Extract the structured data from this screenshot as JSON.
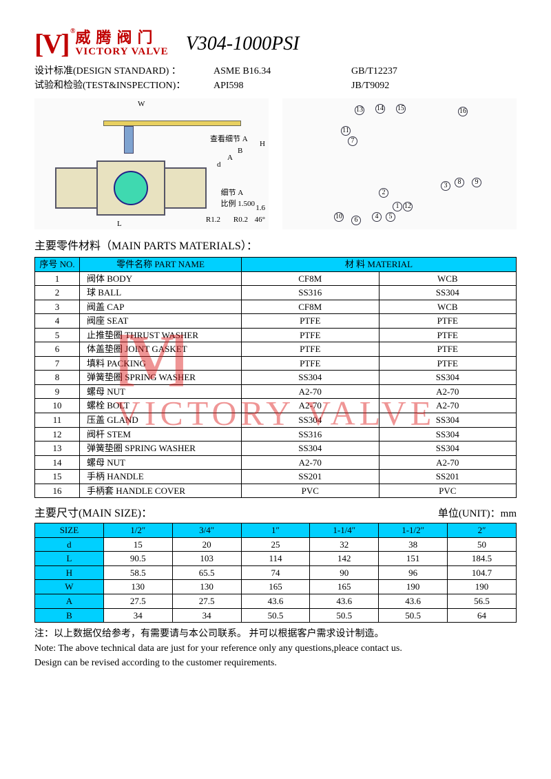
{
  "logo": {
    "v": "[V]",
    "cn": "威腾阀门",
    "en": "VICTORY VALVE",
    "reg": "®"
  },
  "model": "V304-1000PSI",
  "specs": {
    "design_label": "设计标准(DESIGN STANDARD) ：",
    "design_v1": "ASME B16.34",
    "design_v2": "GB/T12237",
    "test_label": "试验和检验(TEST&INSPECTION)：",
    "test_v1": "API598",
    "test_v2": "JB/T9092"
  },
  "diagram": {
    "dim_W": "W",
    "dim_H": "H",
    "dim_L": "L",
    "dim_A": "A",
    "dim_B": "B",
    "dim_d": "d",
    "detail_a": "查看细节 A",
    "detail_scale": "细节 A\n比例 1.500",
    "r12": "R1.2",
    "r02": "R0.2",
    "ang": "46°",
    "rough": "1.6",
    "callouts": [
      "1",
      "2",
      "3",
      "4",
      "5",
      "6",
      "7",
      "8",
      "9",
      "10",
      "11",
      "12",
      "13",
      "14",
      "15",
      "16"
    ]
  },
  "parts": {
    "title": "主要零件材料（MAIN PARTS MATERIALS）：",
    "head_no": "序号 NO.",
    "head_name": "零件名称 PART NAME",
    "head_mat": "材 料   MATERIAL",
    "rows": [
      {
        "no": "1",
        "name": "阀体   BODY",
        "m1": "CF8M",
        "m2": "WCB"
      },
      {
        "no": "2",
        "name": "球     BALL",
        "m1": "SS316",
        "m2": "SS304"
      },
      {
        "no": "3",
        "name": "阀盖   CAP",
        "m1": "CF8M",
        "m2": "WCB"
      },
      {
        "no": "4",
        "name": "阀座   SEAT",
        "m1": "PTFE",
        "m2": "PTFE"
      },
      {
        "no": "5",
        "name": "止推垫圈 THRUST WASHER",
        "m1": "PTFE",
        "m2": "PTFE"
      },
      {
        "no": "6",
        "name": "体盖垫圈 JOINT GASKET",
        "m1": "PTFE",
        "m2": "PTFE"
      },
      {
        "no": "7",
        "name": "填料     PACKING",
        "m1": "PTFE",
        "m2": "PTFE"
      },
      {
        "no": "8",
        "name": "弹簧垫圈 SPRING WASHER",
        "m1": "SS304",
        "m2": "SS304"
      },
      {
        "no": "9",
        "name": "螺母   NUT",
        "m1": "A2-70",
        "m2": "A2-70"
      },
      {
        "no": "10",
        "name": "螺栓   BOLT",
        "m1": "A2-70",
        "m2": "A2-70"
      },
      {
        "no": "11",
        "name": "压盖     GLAND",
        "m1": "SS304",
        "m2": "SS304"
      },
      {
        "no": "12",
        "name": "阀杆   STEM",
        "m1": "SS316",
        "m2": "SS304"
      },
      {
        "no": "13",
        "name": "弹簧垫圈 SPRING WASHER",
        "m1": "SS304",
        "m2": "SS304"
      },
      {
        "no": "14",
        "name": "螺母   NUT",
        "m1": "A2-70",
        "m2": "A2-70"
      },
      {
        "no": "15",
        "name": "手柄   HANDLE",
        "m1": "SS201",
        "m2": "SS201"
      },
      {
        "no": "16",
        "name": "手柄套 HANDLE COVER",
        "m1": "PVC",
        "m2": "PVC"
      }
    ]
  },
  "sizes": {
    "title": "主要尺寸(MAIN SIZE)：",
    "unit": "单位(UNIT)：mm",
    "cols": [
      "SIZE",
      "1/2″",
      "3/4″",
      "1″",
      "1-1/4″",
      "1-1/2″",
      "2″"
    ],
    "rows": [
      [
        "d",
        "15",
        "20",
        "25",
        "32",
        "38",
        "50"
      ],
      [
        "L",
        "90.5",
        "103",
        "114",
        "142",
        "151",
        "184.5"
      ],
      [
        "H",
        "58.5",
        "65.5",
        "74",
        "90",
        "96",
        "104.7"
      ],
      [
        "W",
        "130",
        "130",
        "165",
        "165",
        "190",
        "190"
      ],
      [
        "A",
        "27.5",
        "27.5",
        "43.6",
        "43.6",
        "43.6",
        "56.5"
      ],
      [
        "B",
        "34",
        "34",
        "50.5",
        "50.5",
        "50.5",
        "64"
      ]
    ]
  },
  "notes": {
    "cn": "注：以上数据仅给参考，有需要请与本公司联系。 并可以根据客户需求设计制造。",
    "en1": "Note:    The above technical data are just for your reference only any questions,pleace contact us.",
    "en2": "Design can be revised according to the customer requirements."
  },
  "watermark": {
    "v": "[V]",
    "text": "VICTORY VALVE"
  },
  "colors": {
    "header_bg": "#00d0ff",
    "brand": "#c00000",
    "watermark": "rgba(220,20,20,0.45)",
    "ball": "#3fd9b0",
    "body_fill": "#e8e2c0"
  }
}
